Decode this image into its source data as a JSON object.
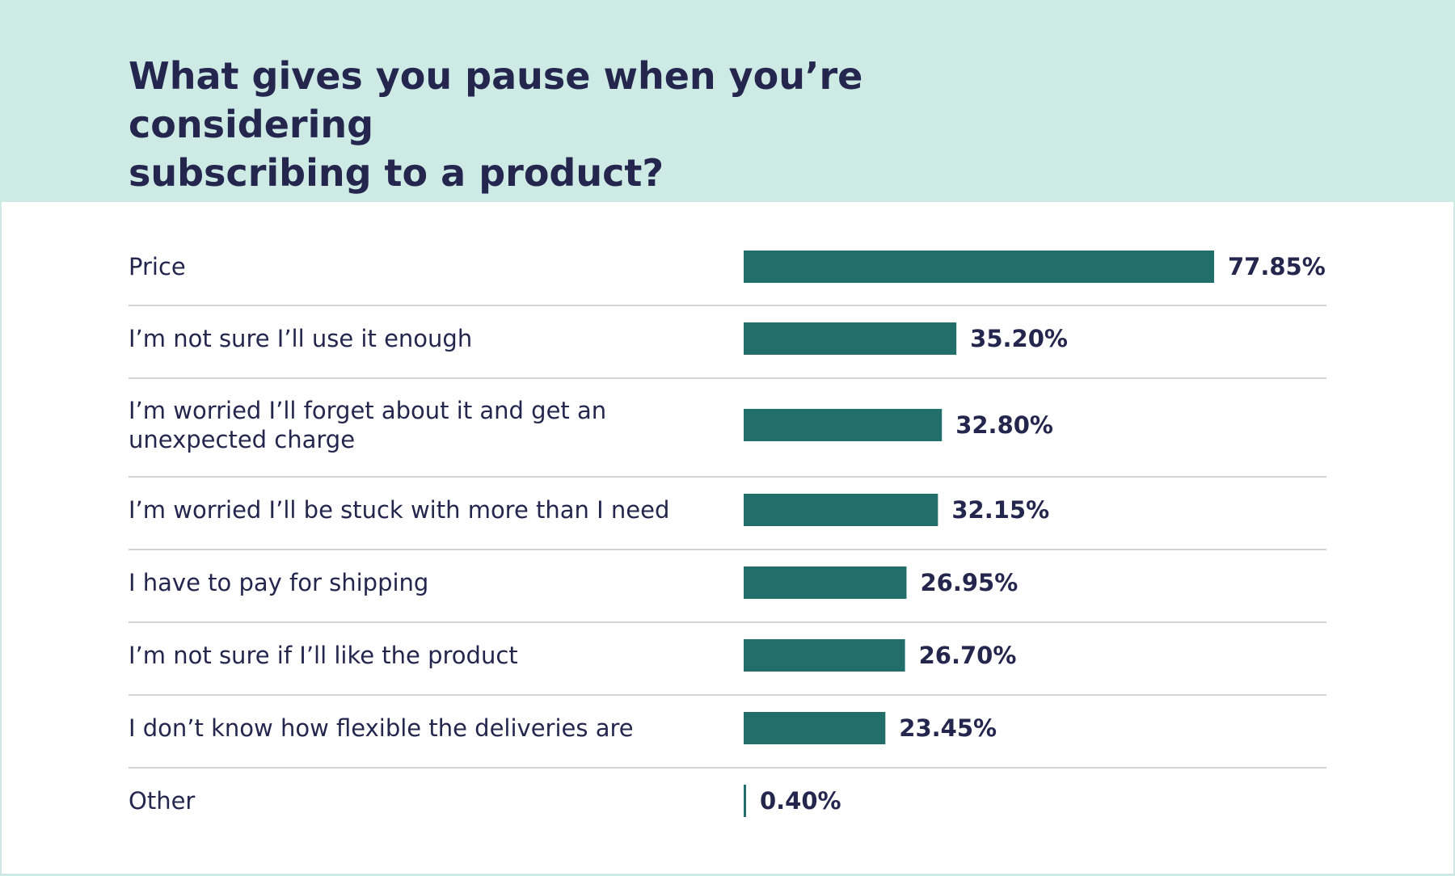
{
  "title": "What gives you pause when you’re considering\nsubscribing to a product?",
  "colors": {
    "header_background": "#cdeae5",
    "bar": "#226e6b",
    "text": "#24264e",
    "divider": "#d4d4d4"
  },
  "chart_data": {
    "type": "bar",
    "orientation": "horizontal",
    "title": "What gives you pause when you’re considering subscribing to a product?",
    "xlabel": "",
    "ylabel": "",
    "xlim": [
      0,
      77.85
    ],
    "grid": false,
    "legend": "none",
    "categories": [
      "Price",
      " I’m not sure I’ll use it enough",
      "I’m worried I’ll forget about it and get an\nunexpected charge",
      "I’m worried I’ll be stuck with more than I need",
      "I have to pay for shipping",
      "I’m not sure if I’ll like the product",
      "I don’t know how flexible the deliveries are",
      "Other"
    ],
    "values": [
      77.85,
      35.2,
      32.8,
      32.15,
      26.95,
      26.7,
      23.45,
      0.4
    ],
    "value_labels": [
      "77.85%",
      "35.20%",
      "32.80%",
      "32.15%",
      "26.95%",
      "26.70%",
      "23.45%",
      "0.40%"
    ]
  }
}
